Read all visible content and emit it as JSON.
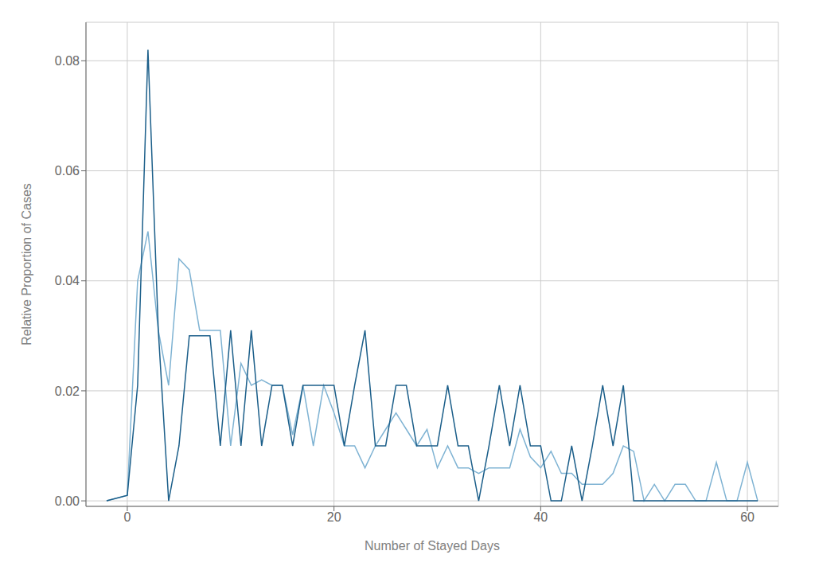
{
  "chart_data": {
    "type": "line",
    "xlabel": "Number of Stayed Days",
    "ylabel": "Relative Proportion of Cases",
    "x": [
      -2,
      0,
      1,
      2,
      3,
      4,
      5,
      6,
      7,
      8,
      9,
      10,
      11,
      12,
      13,
      14,
      15,
      16,
      17,
      18,
      19,
      20,
      21,
      22,
      23,
      24,
      25,
      26,
      27,
      28,
      29,
      30,
      31,
      32,
      33,
      34,
      35,
      36,
      37,
      38,
      39,
      40,
      41,
      42,
      43,
      44,
      45,
      46,
      47,
      48,
      49,
      50,
      51,
      52,
      53,
      54,
      55,
      56,
      57,
      58,
      59,
      60,
      61
    ],
    "series": [
      {
        "color": "#7fb3d3",
        "values": [
          0.0,
          0.001,
          0.04,
          0.049,
          0.031,
          0.021,
          0.044,
          0.042,
          0.031,
          0.031,
          0.031,
          0.01,
          0.025,
          0.021,
          0.022,
          0.021,
          0.021,
          0.012,
          0.021,
          0.01,
          0.021,
          0.016,
          0.01,
          0.01,
          0.006,
          0.01,
          0.013,
          0.016,
          0.013,
          0.01,
          0.013,
          0.006,
          0.01,
          0.006,
          0.006,
          0.005,
          0.006,
          0.006,
          0.006,
          0.013,
          0.008,
          0.006,
          0.009,
          0.005,
          0.005,
          0.003,
          0.003,
          0.003,
          0.005,
          0.01,
          0.009,
          0.0,
          0.003,
          0.0,
          0.003,
          0.003,
          0.0,
          0.0,
          0.007,
          0.0,
          0.0,
          0.007,
          0.0
        ]
      },
      {
        "color": "#1c5f8a",
        "values": [
          0.0,
          0.001,
          0.021,
          0.082,
          0.031,
          0.0,
          0.01,
          0.03,
          0.03,
          0.03,
          0.01,
          0.031,
          0.01,
          0.031,
          0.01,
          0.021,
          0.021,
          0.01,
          0.021,
          0.021,
          0.021,
          0.021,
          0.01,
          0.021,
          0.031,
          0.01,
          0.01,
          0.021,
          0.021,
          0.01,
          0.01,
          0.01,
          0.021,
          0.01,
          0.01,
          0.0,
          0.01,
          0.021,
          0.01,
          0.021,
          0.01,
          0.01,
          0.0,
          0.0,
          0.01,
          0.0,
          0.01,
          0.021,
          0.01,
          0.021,
          0.0,
          0.0,
          0.0,
          0.0,
          0.0,
          0.0,
          0.0,
          0.0,
          0.0,
          0.0,
          0.0,
          0.0,
          0.0
        ]
      }
    ],
    "xlim": [
      -4,
      63
    ],
    "xticks": [
      0,
      20,
      40,
      60
    ],
    "ylim": [
      -0.001,
      0.087
    ],
    "yticks": [
      {
        "value": 0.0,
        "label": "0.00"
      },
      {
        "value": 0.02,
        "label": "0.02"
      },
      {
        "value": 0.04,
        "label": "0.04"
      },
      {
        "value": 0.06,
        "label": "0.06"
      },
      {
        "value": 0.08,
        "label": "0.08"
      }
    ],
    "grid": true
  }
}
